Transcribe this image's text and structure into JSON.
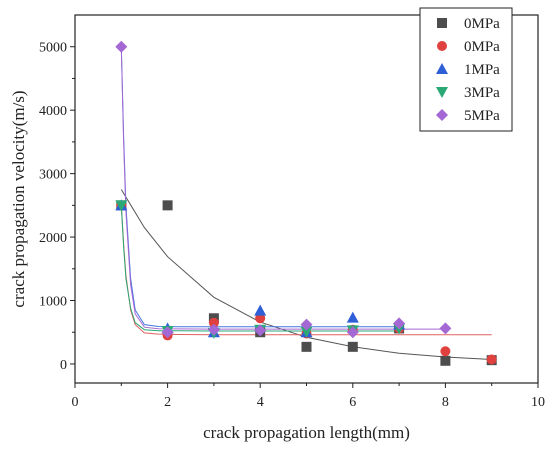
{
  "chart_data": {
    "type": "scatter",
    "title": "",
    "xlabel": "crack propagation length(mm)",
    "ylabel": "crack propagation velocity(m/s)",
    "xlim": [
      0,
      10
    ],
    "ylim": [
      -300,
      5500
    ],
    "x_ticks": [
      0,
      2,
      4,
      6,
      8,
      10
    ],
    "y_ticks": [
      0,
      1000,
      2000,
      3000,
      4000,
      5000
    ],
    "grid": false,
    "legend_position": "top-right",
    "series": [
      {
        "name": "0MPa",
        "marker": "square",
        "color": "#4d4d4d",
        "x": [
          1,
          2,
          3,
          4,
          5,
          6,
          7,
          8,
          9
        ],
        "y": [
          2500,
          2500,
          720,
          500,
          270,
          270,
          560,
          50,
          60
        ],
        "fit": {
          "x": [
            1,
            1.5,
            2,
            3,
            4,
            5,
            6,
            7,
            8,
            9
          ],
          "y": [
            2750,
            2150,
            1690,
            1050,
            660,
            420,
            270,
            170,
            110,
            70
          ],
          "color": "#555555"
        }
      },
      {
        "name": "0MPa",
        "marker": "circle",
        "color": "#e0413f",
        "x": [
          1,
          2,
          3,
          4,
          5,
          6,
          7,
          8,
          9
        ],
        "y": [
          2500,
          450,
          650,
          720,
          480,
          540,
          560,
          200,
          70
        ],
        "fit": {
          "x": [
            1,
            1.05,
            1.1,
            1.2,
            1.3,
            1.5,
            1.8,
            2.2,
            3,
            5,
            9
          ],
          "y": [
            2500,
            1900,
            1400,
            850,
            620,
            490,
            470,
            465,
            462,
            460,
            460
          ],
          "color": "#e06060"
        }
      },
      {
        "name": "1MPa",
        "marker": "triangle-up",
        "color": "#2f5fd6",
        "x": [
          1,
          2,
          3,
          4,
          5,
          6,
          7
        ],
        "y": [
          2500,
          560,
          500,
          840,
          500,
          730,
          620
        ],
        "fit": {
          "x": [
            1,
            1.05,
            1.1,
            1.2,
            1.3,
            1.5,
            1.8,
            2.2,
            3,
            5,
            7
          ],
          "y": [
            5000,
            3600,
            2500,
            1350,
            850,
            620,
            590,
            585,
            585,
            585,
            585
          ],
          "color": "#4477e0"
        }
      },
      {
        "name": "3MPa",
        "marker": "triangle-down",
        "color": "#2aa876",
        "x": [
          1,
          2,
          3,
          4,
          5,
          6,
          7
        ],
        "y": [
          2500,
          520,
          490,
          540,
          510,
          530,
          560
        ],
        "fit": {
          "x": [
            1,
            1.05,
            1.1,
            1.2,
            1.3,
            1.5,
            1.8,
            2.2,
            3,
            5,
            7
          ],
          "y": [
            2500,
            1850,
            1350,
            880,
            650,
            540,
            525,
            522,
            520,
            520,
            520
          ],
          "color": "#2aa876"
        }
      },
      {
        "name": "5MPa",
        "marker": "diamond",
        "color": "#a468d4",
        "x": [
          1,
          2,
          3,
          4,
          5,
          6,
          7,
          8
        ],
        "y": [
          5000,
          500,
          540,
          530,
          620,
          500,
          640,
          560
        ],
        "fit": {
          "x": [
            1,
            1.05,
            1.1,
            1.2,
            1.3,
            1.5,
            1.8,
            2.2,
            3,
            5,
            8
          ],
          "y": [
            5000,
            3500,
            2400,
            1250,
            790,
            580,
            555,
            552,
            550,
            550,
            550
          ],
          "color": "#a468d4"
        }
      }
    ]
  }
}
